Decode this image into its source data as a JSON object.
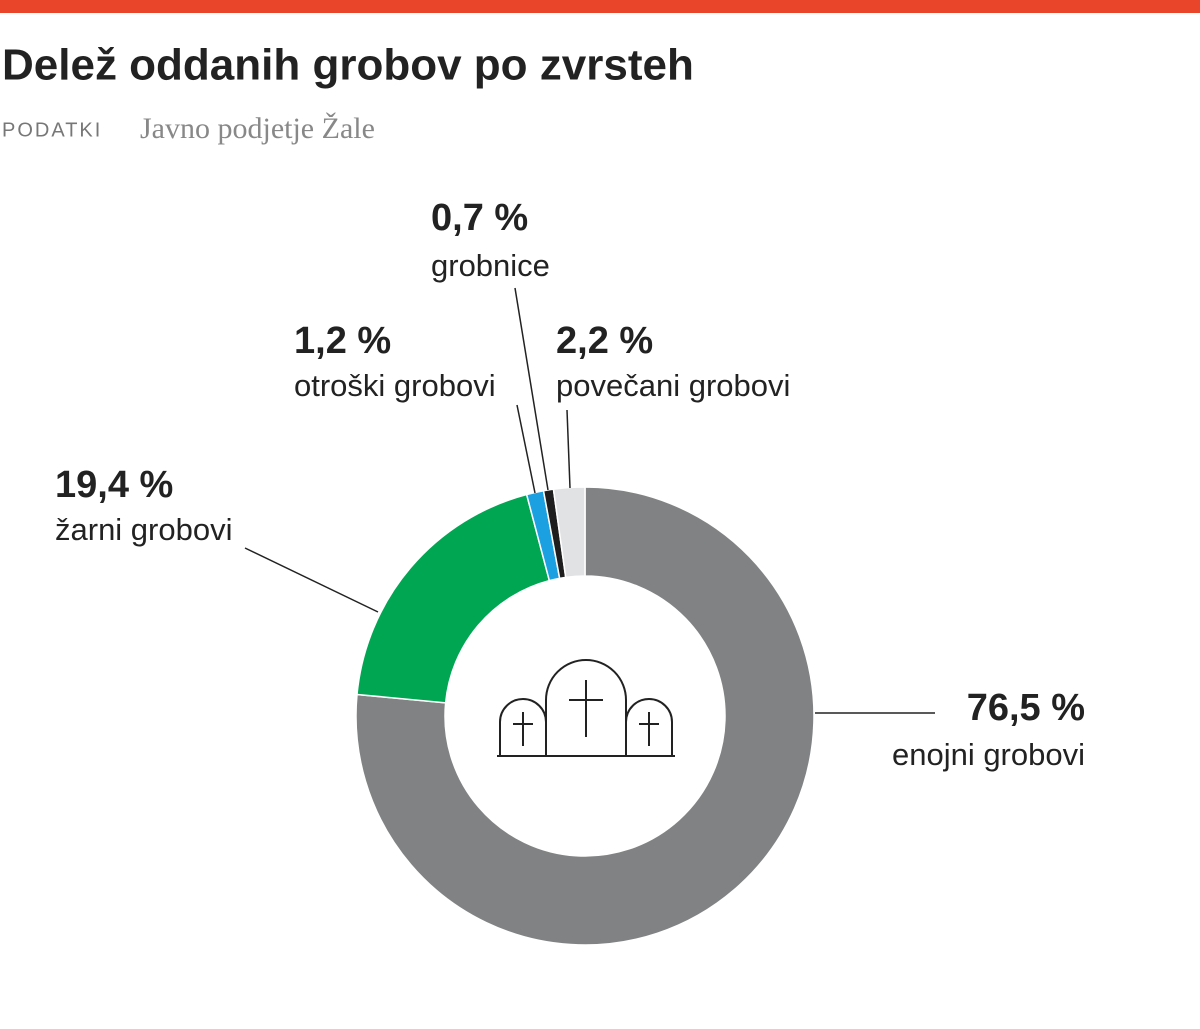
{
  "chart_data": {
    "type": "donut",
    "title": "Delež oddanih grobov po zvrsteh",
    "source_label": "PODATKI",
    "source": "Javno podjetje Žale",
    "categories": [
      "enojni grobovi",
      "žarni grobovi",
      "otroški grobovi",
      "grobnice",
      "povečani grobovi"
    ],
    "values": [
      76.5,
      19.4,
      1.2,
      0.7,
      2.2
    ],
    "value_labels": [
      "76,5 %",
      "19,4 %",
      "1,2 %",
      "0,7 %",
      "2,2 %"
    ],
    "colors": [
      "#808283",
      "#00a651",
      "#1ba1e2",
      "#1e1e1e",
      "#e0e2e3"
    ]
  }
}
